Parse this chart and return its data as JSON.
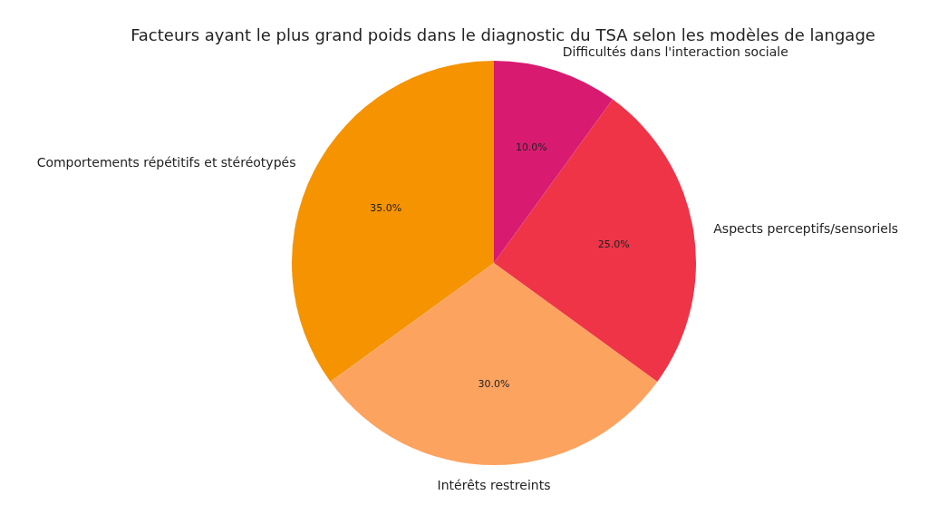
{
  "chart_data": {
    "type": "pie",
    "title": "Facteurs ayant le plus grand poids dans le diagnostic du TSA selon les modèles de langage",
    "categories": [
      "Comportements répétitifs et stéréotypés",
      "Intérêts restreints",
      "Aspects perceptifs/sensoriels",
      "Difficultés dans l'interaction sociale"
    ],
    "values": [
      35,
      30,
      25,
      10
    ],
    "colors": [
      "#f59300",
      "#fca360",
      "#ee3446",
      "#d81b70"
    ],
    "value_labels": [
      "35.0%",
      "30.0%",
      "25.0%",
      "10.0%"
    ],
    "legend": false
  }
}
